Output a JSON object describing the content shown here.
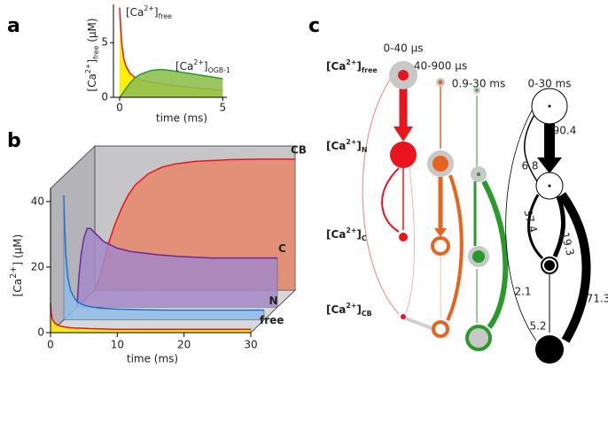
{
  "panel_labels": [
    "a",
    "b",
    "c"
  ],
  "chart_data": [
    {
      "type": "area",
      "xlabel": "time (ms)",
      "ylabel": {
        "base": "[Ca",
        "sup": "2+",
        "close": "]",
        "sub": "free",
        "unit": " (µM)"
      },
      "x": [
        0,
        0.05,
        0.1,
        0.2,
        0.3,
        0.5,
        0.75,
        1,
        1.5,
        2,
        2.5,
        3,
        4,
        5
      ],
      "xlim": [
        -0.3,
        5.2
      ],
      "ylim": [
        0,
        8.5
      ],
      "xticks": [
        0,
        5
      ],
      "yticks": [
        0,
        5
      ],
      "series": [
        {
          "name": {
            "base": "[Ca",
            "sup": "2+",
            "close": "]",
            "sub": "free"
          },
          "color": "#e8141e",
          "fill": "#ffef00",
          "values": [
            8.2,
            6.5,
            5,
            3.6,
            2.9,
            2.2,
            1.8,
            1.6,
            1.4,
            1.25,
            1.1,
            1,
            0.8,
            0.65
          ]
        },
        {
          "name": {
            "base": "[Ca",
            "sup": "2+",
            "close": "]",
            "sub": "OGB-1"
          },
          "color": "#2a9a2a",
          "fill": "#8fc050",
          "values": [
            0,
            0.1,
            0.25,
            0.5,
            0.8,
            1.3,
            1.8,
            2.1,
            2.45,
            2.55,
            2.45,
            2.3,
            2,
            1.7
          ]
        }
      ]
    },
    {
      "type": "area3d",
      "xlabel": "time (ms)",
      "ylabel": {
        "base": "[Ca",
        "sup": "2+",
        "close": "] (µM)"
      },
      "x": [
        0,
        0.1,
        0.3,
        0.6,
        1,
        1.5,
        2,
        3,
        4,
        5,
        6,
        8,
        10,
        12,
        15,
        20,
        25,
        30
      ],
      "xlim": [
        0,
        30
      ],
      "ylim": [
        0,
        44
      ],
      "xticks": [
        0,
        10,
        20,
        30
      ],
      "yticks": [
        0,
        20,
        40
      ],
      "series": [
        {
          "name": "free",
          "color": "#e8141e",
          "fill": "#ffef00",
          "label_color": "#000000",
          "values": [
            9,
            6,
            4,
            3,
            2.4,
            2,
            1.8,
            1.5,
            1.4,
            1.3,
            1.2,
            1.1,
            1,
            1,
            1,
            1,
            1,
            1
          ]
        },
        {
          "name": "N",
          "color": "#1f6fd0",
          "fill": "#8fbce8",
          "label_color": "#1f6fd0",
          "values": [
            38,
            30,
            20,
            13,
            9,
            7,
            5.5,
            4.5,
            4,
            3.7,
            3.5,
            3.3,
            3.2,
            3.1,
            3,
            3,
            3,
            3
          ]
        },
        {
          "name": "C",
          "color": "#6a2a9a",
          "fill": "#a48ac8",
          "label_color": "#6a2a9a",
          "values": [
            0,
            4,
            10,
            16,
            21,
            24,
            24,
            22,
            20,
            19,
            18,
            17,
            16.5,
            16,
            15.5,
            15,
            15,
            15
          ]
        },
        {
          "name": "CB",
          "color": "#e8141e",
          "fill": "#e8866a",
          "label_color": "#e8141e",
          "values": [
            0,
            0.5,
            1.5,
            3,
            6,
            10,
            14,
            20,
            25,
            29,
            32,
            35.5,
            37.5,
            38.5,
            39.3,
            39.8,
            40,
            40
          ]
        }
      ]
    }
  ],
  "diagram": {
    "columns": [
      "0-40 µs",
      "40-900 µs",
      "0.9-30 ms",
      "0-30 ms"
    ],
    "rows": [
      {
        "base": "[Ca",
        "sup": "2+",
        "close": "]",
        "sub": "free"
      },
      {
        "base": "[Ca",
        "sup": "2+",
        "close": "]",
        "sub": "N"
      },
      {
        "base": "[Ca",
        "sup": "2+",
        "close": "]",
        "sub": "C"
      },
      {
        "base": "[Ca",
        "sup": "2+",
        "close": "]",
        "sub": "CB"
      }
    ],
    "flux_labels": [
      "90.4",
      "6.8",
      "37.4",
      "19.3",
      "2.1",
      "5.2",
      "71.3"
    ]
  }
}
